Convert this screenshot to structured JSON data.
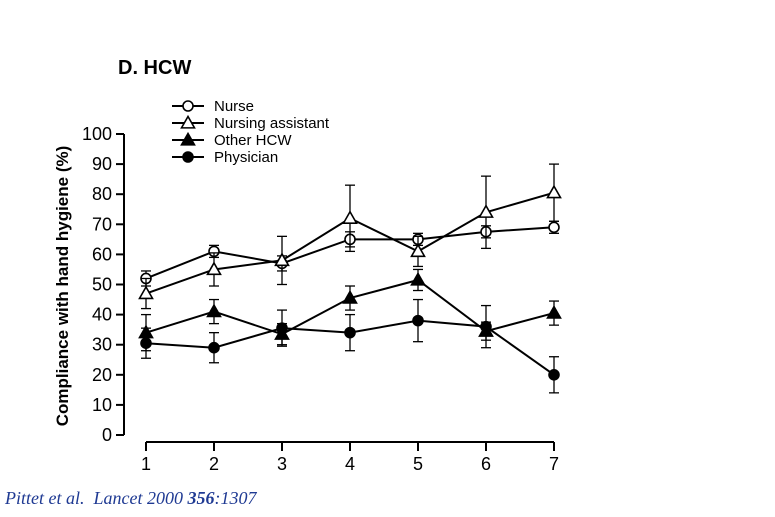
{
  "panel_title": "D. HCW",
  "citation": {
    "authors": "Pittet et al.",
    "journal": "Lancet 2000",
    "volume": "356",
    "pages": ":1307"
  },
  "chart_data": {
    "type": "line",
    "title": "D. HCW",
    "xlabel": "",
    "ylabel": "Compliance with hand hygiene (%)",
    "x": [
      1,
      2,
      3,
      4,
      5,
      6,
      7
    ],
    "xlim": [
      1,
      7
    ],
    "ylim": [
      0,
      100
    ],
    "yticks": [
      0,
      10,
      20,
      30,
      40,
      50,
      60,
      70,
      80,
      90,
      100
    ],
    "grid": false,
    "legend_position": "top-left",
    "series": [
      {
        "name": "Nurse",
        "marker": "open-circle",
        "values": [
          52,
          61,
          57,
          65,
          65,
          67.5,
          69
        ],
        "error": [
          2.5,
          2,
          2.5,
          2.5,
          2,
          2,
          2
        ]
      },
      {
        "name": "Nursing assistant",
        "marker": "open-triangle",
        "values": [
          47,
          55,
          58,
          72,
          61,
          74,
          80.5
        ],
        "error": [
          5,
          5.5,
          8,
          11,
          5,
          12,
          9.5
        ]
      },
      {
        "name": "Other HCW",
        "marker": "filled-triangle",
        "values": [
          34,
          41,
          33.5,
          45.5,
          51.5,
          34.5,
          40.5
        ],
        "error": [
          6,
          4,
          3.5,
          4,
          3.5,
          3,
          4
        ]
      },
      {
        "name": "Physician",
        "marker": "filled-circle",
        "values": [
          30.5,
          29,
          35.5,
          34,
          38,
          36,
          20
        ],
        "error": [
          5,
          5,
          6,
          6,
          7,
          7,
          6
        ]
      }
    ]
  }
}
